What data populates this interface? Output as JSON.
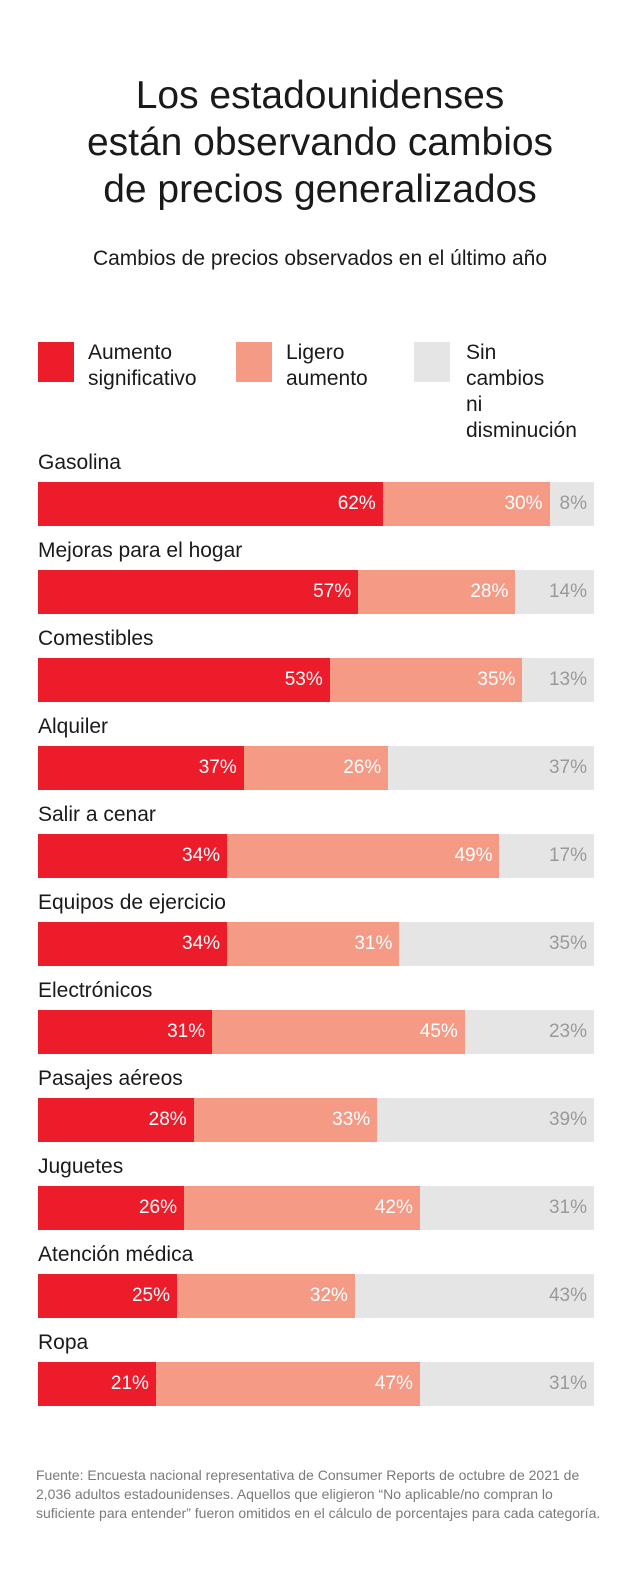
{
  "header": {
    "title": "Los estadounidenses\nestán observando cambios\nde precios generalizados",
    "subtitle": "Cambios de precios observados en el último año"
  },
  "colors": {
    "significant": "#ec1c2a",
    "slight": "#f49a85",
    "none": "#e5e5e5",
    "label_on_dark": "#ffffff",
    "label_on_gray": "#9a9a9a"
  },
  "chart_data": {
    "type": "bar",
    "orientation": "horizontal",
    "stacked": true,
    "title": "Los estadounidenses están observando cambios de precios generalizados",
    "subtitle": "Cambios de precios observados en el último año",
    "legend_placement": "top",
    "grid": false,
    "xlim": [
      0,
      100
    ],
    "unit": "%",
    "categories": [
      "Gasolina",
      "Mejoras para el hogar",
      "Comestibles",
      "Alquiler",
      "Salir a cenar",
      "Equipos de ejercicio",
      "Electrónicos",
      "Pasajes aéreos",
      "Juguetes",
      "Atención médica",
      "Ropa"
    ],
    "series": [
      {
        "name": "Aumento\nsignificativo",
        "color": "#ec1c2a",
        "values": [
          62,
          57,
          53,
          37,
          34,
          34,
          31,
          28,
          26,
          25,
          21
        ]
      },
      {
        "name": "Ligero\naumento",
        "color": "#f49a85",
        "values": [
          30,
          28,
          35,
          26,
          49,
          31,
          45,
          33,
          42,
          32,
          47
        ]
      },
      {
        "name": "Sin cambios\nni disminución",
        "color": "#e5e5e5",
        "values": [
          8,
          14,
          13,
          37,
          17,
          35,
          23,
          39,
          31,
          43,
          31
        ]
      }
    ]
  },
  "footer": {
    "source": "Fuente: Encuesta nacional representativa de Consumer Reports de octubre de 2021 de 2,036 adultos estadounidenses. Aquellos que eligieron “No aplicable/no compran lo suficiente para entender” fueron omitidos en el cálculo de porcentajes para cada categoría."
  }
}
